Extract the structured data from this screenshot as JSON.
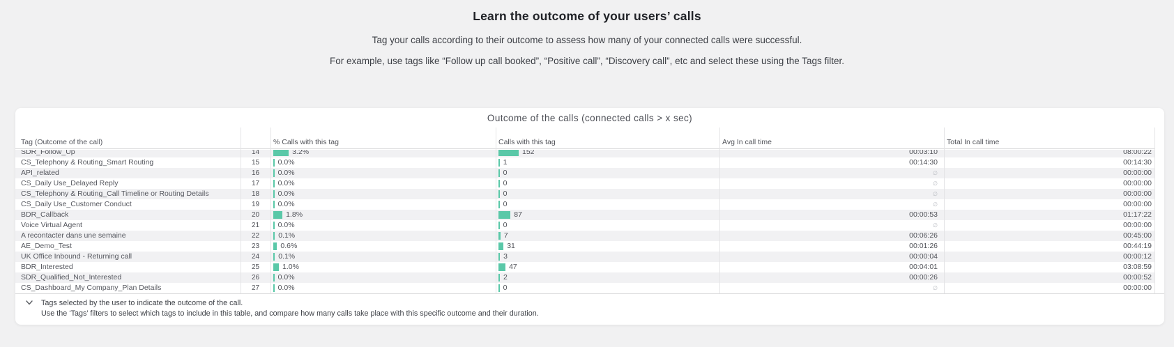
{
  "page": {
    "title": "Learn the outcome of your users’ calls",
    "description_line1": "Tag your calls according to their outcome to assess how many of your connected calls were successful.",
    "description_line2": "For example, use tags like “Follow up call booked”, “Positive call”, “Discovery call”, etc and select these using the Tags filter."
  },
  "colors": {
    "bar": "#5ac8a8",
    "stripe": "#f1f1f3",
    "card_background": "#ffffff",
    "page_background": "#f1f1f2"
  },
  "card": {
    "title": "Outcome of the calls (connected calls > x sec)",
    "table": {
      "columns": [
        "Tag (Outcome of the call)",
        "",
        "% Calls with this tag",
        "Calls with this tag",
        "Avg In call time",
        "Total In call time"
      ],
      "null_symbol": "∅",
      "partial_next_row_visible": true,
      "rows": [
        {
          "tag": "SDR_Follow_Up",
          "index": 14,
          "pct": "3.2%",
          "pct_value": 3.2,
          "calls": 152,
          "avg": "00:03:10",
          "total": "08:00:22"
        },
        {
          "tag": "CS_Telephony & Routing_Smart Routing",
          "index": 15,
          "pct": "0.0%",
          "pct_value": 0.0,
          "calls": 1,
          "avg": "00:14:30",
          "total": "00:14:30"
        },
        {
          "tag": "API_related",
          "index": 16,
          "pct": "0.0%",
          "pct_value": 0.0,
          "calls": 0,
          "avg": null,
          "total": "00:00:00"
        },
        {
          "tag": "CS_Daily Use_Delayed Reply",
          "index": 17,
          "pct": "0.0%",
          "pct_value": 0.0,
          "calls": 0,
          "avg": null,
          "total": "00:00:00"
        },
        {
          "tag": "CS_Telephony & Routing_Call Timeline or Routing Details",
          "index": 18,
          "pct": "0.0%",
          "pct_value": 0.0,
          "calls": 0,
          "avg": null,
          "total": "00:00:00"
        },
        {
          "tag": "CS_Daily Use_Customer Conduct",
          "index": 19,
          "pct": "0.0%",
          "pct_value": 0.0,
          "calls": 0,
          "avg": null,
          "total": "00:00:00"
        },
        {
          "tag": "BDR_Callback",
          "index": 20,
          "pct": "1.8%",
          "pct_value": 1.8,
          "calls": 87,
          "avg": "00:00:53",
          "total": "01:17:22"
        },
        {
          "tag": "Voice Virtual Agent",
          "index": 21,
          "pct": "0.0%",
          "pct_value": 0.0,
          "calls": 0,
          "avg": null,
          "total": "00:00:00"
        },
        {
          "tag": "A recontacter dans une semaine",
          "index": 22,
          "pct": "0.1%",
          "pct_value": 0.1,
          "calls": 7,
          "avg": "00:06:26",
          "total": "00:45:00"
        },
        {
          "tag": "AE_Demo_Test",
          "index": 23,
          "pct": "0.6%",
          "pct_value": 0.6,
          "calls": 31,
          "avg": "00:01:26",
          "total": "00:44:19"
        },
        {
          "tag": "UK Office Inbound - Returning call",
          "index": 24,
          "pct": "0.1%",
          "pct_value": 0.1,
          "calls": 3,
          "avg": "00:00:04",
          "total": "00:00:12"
        },
        {
          "tag": "BDR_Interested",
          "index": 25,
          "pct": "1.0%",
          "pct_value": 1.0,
          "calls": 47,
          "avg": "00:04:01",
          "total": "03:08:59"
        },
        {
          "tag": "SDR_Qualified_Not_Interested",
          "index": 26,
          "pct": "0.0%",
          "pct_value": 0.0,
          "calls": 2,
          "avg": "00:00:26",
          "total": "00:00:52"
        },
        {
          "tag": "CS_Dashboard_My Company_Plan Details",
          "index": 27,
          "pct": "0.0%",
          "pct_value": 0.0,
          "calls": 0,
          "avg": null,
          "total": "00:00:00"
        }
      ]
    },
    "footer": {
      "line1": "Tags selected by the user to indicate the outcome of the call.",
      "line2": "Use the ‘Tags’ filters to select which tags to include in this table, and compare how many calls take place with this specific outcome and their duration."
    }
  }
}
